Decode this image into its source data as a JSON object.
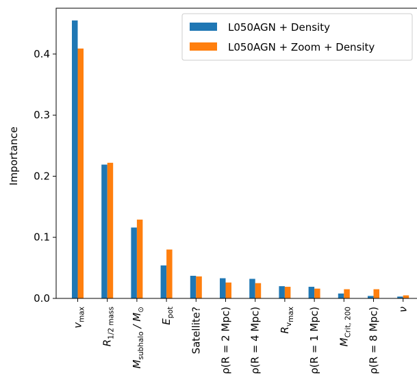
{
  "chart_data": {
    "type": "bar",
    "ylabel": "Importance",
    "xlabel": "",
    "ylim": [
      0,
      0.475
    ],
    "yticks": [
      "0.0",
      "0.1",
      "0.2",
      "0.3",
      "0.4"
    ],
    "categories": [
      {
        "main": "v",
        "sub": "max",
        "italic": true,
        "suffix": ""
      },
      {
        "main": "R",
        "sub": "1/2 mass",
        "italic": true,
        "suffix": ""
      },
      {
        "main": "M",
        "sub": "subhalo",
        "italic": true,
        "suffix": " / M",
        "suffix_sub": "⊙"
      },
      {
        "main": "E",
        "sub": "pot",
        "italic": true,
        "suffix": ""
      },
      {
        "main": "Satellite?",
        "sub": "",
        "italic": false,
        "suffix": ""
      },
      {
        "main": "ρ(R = 2 Mpc)",
        "sub": "",
        "italic": false,
        "suffix": ""
      },
      {
        "main": "ρ(R = 4 Mpc)",
        "sub": "",
        "italic": false,
        "suffix": ""
      },
      {
        "main": "R",
        "sub": "v",
        "sub2": "max",
        "italic": true,
        "suffix": ""
      },
      {
        "main": "ρ(R = 1 Mpc)",
        "sub": "",
        "italic": false,
        "suffix": ""
      },
      {
        "main": "M",
        "sub": "Crit, 200",
        "italic": true,
        "suffix": ""
      },
      {
        "main": "ρ(R = 8 Mpc)",
        "sub": "",
        "italic": false,
        "suffix": ""
      },
      {
        "main": "ν",
        "sub": "",
        "italic": true,
        "suffix": ""
      }
    ],
    "series": [
      {
        "name": "L050AGN + Density",
        "color": "#1f77b4",
        "values": [
          0.455,
          0.219,
          0.116,
          0.054,
          0.037,
          0.033,
          0.032,
          0.02,
          0.019,
          0.008,
          0.004,
          0.003
        ]
      },
      {
        "name": "L050AGN + Zoom + Density",
        "color": "#ff7f0e",
        "values": [
          0.409,
          0.222,
          0.129,
          0.08,
          0.036,
          0.026,
          0.025,
          0.019,
          0.016,
          0.015,
          0.015,
          0.005
        ]
      }
    ],
    "legend": "top-right",
    "grid": false
  }
}
